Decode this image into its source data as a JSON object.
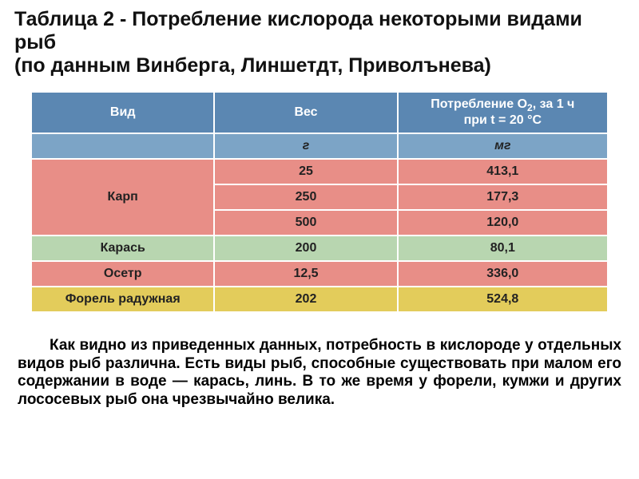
{
  "title_line1": "Таблица 2 - Потребление кислорода некоторыми видами рыб",
  "title_line2": "(по данным Винберга, Линшетдт, Приволънева)",
  "colors": {
    "header_blue": "#5b87b2",
    "unit_blue": "#7ca4c6",
    "salmon": "#e88e87",
    "green": "#b8d6b0",
    "yellow": "#e3cc5b",
    "cell_border": "#ffffff",
    "header_text": "#ffffff",
    "body_text": "#222222"
  },
  "columns": [
    {
      "label": "Вид",
      "unit": ""
    },
    {
      "label": "Вес",
      "unit": "г"
    },
    {
      "label_html": "Потребление О<sub>2</sub>, за 1 ч<br>при  t = 20 °С",
      "unit": "мг"
    }
  ],
  "rows": [
    {
      "row_color": "salmon",
      "species": "Карп",
      "cells": [
        {
          "weight": "25",
          "o2": "413,1"
        },
        {
          "weight": "250",
          "o2": "177,3"
        },
        {
          "weight": "500",
          "o2": "120,0"
        }
      ]
    },
    {
      "row_color": "green",
      "species": "Карась",
      "cells": [
        {
          "weight": "200",
          "o2": "80,1"
        }
      ]
    },
    {
      "row_color": "salmon",
      "species": "Осетр",
      "cells": [
        {
          "weight": "12,5",
          "o2": "336,0"
        }
      ]
    },
    {
      "row_color": "yellow",
      "species": "Форель радужная",
      "cells": [
        {
          "weight": "202",
          "o2": "524,8"
        }
      ]
    }
  ],
  "paragraph": "Как видно из приведенных данных, потребность в кислороде у отдельных видов рыб различна. Есть виды рыб, способные существовать при малом его содержании в воде — карась, линь. В то же время у форели, кумжи и других лососевых рыб она чрезвычайно велика."
}
